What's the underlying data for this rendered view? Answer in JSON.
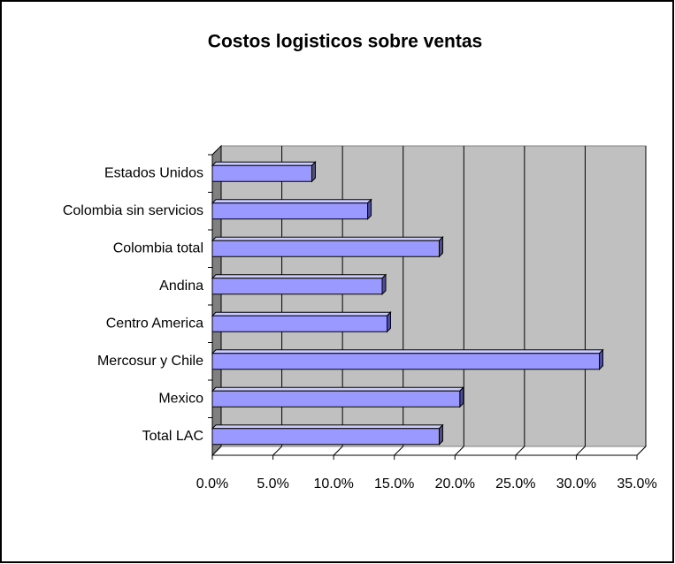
{
  "chart_data": {
    "type": "bar3d-horizontal",
    "title": "Costos logisticos sobre ventas",
    "categories": [
      "Estados Unidos",
      "Colombia sin servicios",
      "Colombia total",
      "Andina",
      "Centro America",
      "Mercosur y Chile",
      "Mexico",
      "Total LAC"
    ],
    "values": [
      8.2,
      12.8,
      18.7,
      14.0,
      14.4,
      31.9,
      20.4,
      18.7
    ],
    "color": "#9999ff",
    "xlim": [
      0,
      35
    ],
    "xticks": [
      {
        "value": 0,
        "label": "0.0%"
      },
      {
        "value": 5,
        "label": "5.0%"
      },
      {
        "value": 10,
        "label": "10.0%"
      },
      {
        "value": 15,
        "label": "15.0%"
      },
      {
        "value": 20,
        "label": "20.0%"
      },
      {
        "value": 25,
        "label": "25.0%"
      },
      {
        "value": 30,
        "label": "30.0%"
      },
      {
        "value": 35,
        "label": "35.0%"
      }
    ],
    "grid": true
  }
}
